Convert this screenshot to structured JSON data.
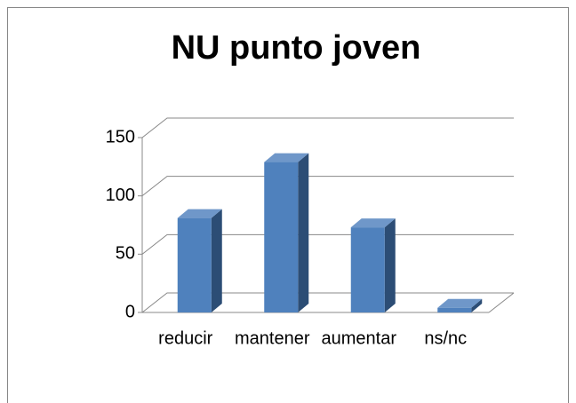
{
  "chart_data": {
    "type": "bar",
    "title": "NU punto joven",
    "categories": [
      "reducir",
      "mantener",
      "aumentar",
      "ns/nc"
    ],
    "values": [
      81,
      129,
      73,
      4
    ],
    "color": "#4f81bd",
    "ylim": [
      0,
      150
    ],
    "yticks": [
      0,
      50,
      100,
      150
    ],
    "grid": true
  }
}
